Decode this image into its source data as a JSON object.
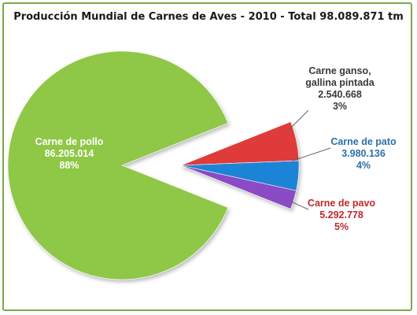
{
  "title": "Producción Mundial de Carnes de Aves - 2010 - Total 98.089.871 tm",
  "chart_data": {
    "type": "pie",
    "title": "Producción Mundial de Carnes de Aves - 2010 - Total 98.089.871 tm",
    "total": "98.089.871 tm",
    "slices": [
      {
        "name": [
          "Carne de pollo"
        ],
        "value": 86205014,
        "value_label": "86.205.014",
        "percent": "88%",
        "color": "#8fc747",
        "label_color": "#ffffff"
      },
      {
        "name": [
          "Carne de pavo"
        ],
        "value": 5292778,
        "value_label": "5.292.778",
        "percent": "5%",
        "color": "#e03a3a",
        "label_color": "#c0282b"
      },
      {
        "name": [
          "Carne de pato"
        ],
        "value": 3980136,
        "value_label": "3.980.136",
        "percent": "4%",
        "color": "#1f84d6",
        "label_color": "#2b6fa8"
      },
      {
        "name": [
          "Carne ganso,",
          "gallina pintada"
        ],
        "value": 2540668,
        "value_label": "2.540.668",
        "percent": "3%",
        "color": "#8a4cc4",
        "label_color": "#3a3a3a"
      }
    ]
  }
}
